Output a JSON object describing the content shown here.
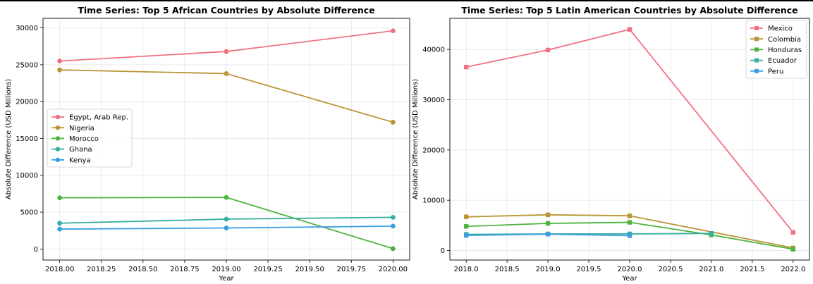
{
  "chart_data": [
    {
      "type": "line",
      "title": "Time Series: Top 5 African Countries by Absolute Difference",
      "xlabel": "Year",
      "ylabel": "Absolute Difference (USD Millions)",
      "xlim": [
        2017.9,
        2020.1
      ],
      "ylim": [
        -1500,
        31300
      ],
      "xticks": [
        2018.0,
        2018.25,
        2018.5,
        2018.75,
        2019.0,
        2019.25,
        2019.5,
        2019.75,
        2020.0
      ],
      "xtick_labels": [
        "2018.00",
        "2018.25",
        "2018.50",
        "2018.75",
        "2019.00",
        "2019.25",
        "2019.50",
        "2019.75",
        "2020.00"
      ],
      "yticks": [
        0,
        5000,
        10000,
        15000,
        20000,
        25000,
        30000
      ],
      "ytick_labels": [
        "0",
        "5000",
        "10000",
        "15000",
        "20000",
        "25000",
        "30000"
      ],
      "grid": true,
      "marker": "circle",
      "legend": "center-left",
      "series": [
        {
          "name": "Egypt, Arab Rep.",
          "color": "#f07181",
          "x": [
            2018,
            2019,
            2020
          ],
          "y": [
            25500,
            26800,
            29600
          ]
        },
        {
          "name": "Nigeria",
          "color": "#b99535",
          "x": [
            2018,
            2019,
            2020
          ],
          "y": [
            24300,
            23800,
            17200
          ]
        },
        {
          "name": "Morocco",
          "color": "#4db43f",
          "x": [
            2018,
            2019,
            2020
          ],
          "y": [
            6950,
            7000,
            50
          ]
        },
        {
          "name": "Ghana",
          "color": "#36ad9f",
          "x": [
            2018,
            2019,
            2020
          ],
          "y": [
            3500,
            4050,
            4300
          ]
        },
        {
          "name": "Kenya",
          "color": "#3c9ee2",
          "x": [
            2018,
            2019,
            2020
          ],
          "y": [
            2700,
            2850,
            3100
          ]
        }
      ]
    },
    {
      "type": "line",
      "title": "Time Series: Top 5 Latin American Countries by Absolute Difference",
      "xlabel": "Year",
      "ylabel": "Absolute Difference (USD Millions)",
      "xlim": [
        2017.8,
        2022.2
      ],
      "ylim": [
        -1900,
        46200
      ],
      "xticks": [
        2018.0,
        2018.5,
        2019.0,
        2019.5,
        2020.0,
        2020.5,
        2021.0,
        2021.5,
        2022.0
      ],
      "xtick_labels": [
        "2018.0",
        "2018.5",
        "2019.0",
        "2019.5",
        "2020.0",
        "2020.5",
        "2021.0",
        "2021.5",
        "2022.0"
      ],
      "yticks": [
        0,
        10000,
        20000,
        30000,
        40000
      ],
      "ytick_labels": [
        "0",
        "10000",
        "20000",
        "30000",
        "40000"
      ],
      "grid": true,
      "marker": "square",
      "legend": "top-right",
      "series": [
        {
          "name": "Mexico",
          "color": "#f07181",
          "x": [
            2018,
            2019,
            2020,
            2022
          ],
          "y": [
            36500,
            39900,
            44000,
            3600
          ]
        },
        {
          "name": "Colombia",
          "color": "#b99535",
          "x": [
            2018,
            2019,
            2020,
            2022
          ],
          "y": [
            6700,
            7100,
            6900,
            500
          ]
        },
        {
          "name": "Honduras",
          "color": "#4db43f",
          "x": [
            2018,
            2019,
            2020,
            2021,
            2022
          ],
          "y": [
            4800,
            5400,
            5600,
            3100,
            250
          ]
        },
        {
          "name": "Ecuador",
          "color": "#36ad9f",
          "x": [
            2018,
            2019,
            2020,
            2021
          ],
          "y": [
            3200,
            3300,
            3300,
            3400
          ]
        },
        {
          "name": "Peru",
          "color": "#3c9ee2",
          "x": [
            2018,
            2019,
            2020
          ],
          "y": [
            3000,
            3250,
            2950
          ]
        }
      ]
    }
  ]
}
